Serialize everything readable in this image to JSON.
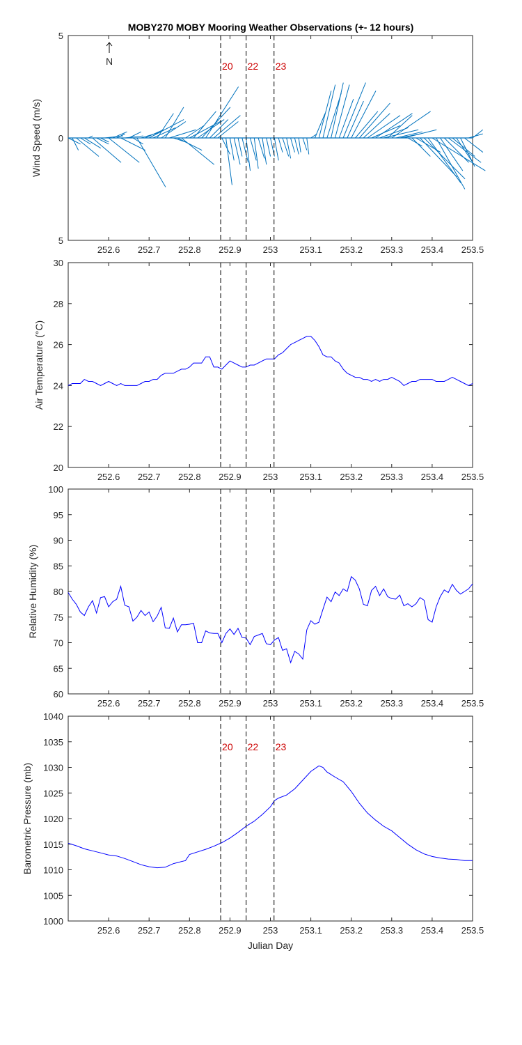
{
  "title": "MOBY270 MOBY Mooring Weather Observations (+- 12 hours)",
  "north_label": "N",
  "xlabel": "Julian Day",
  "x_tick_values": [
    252.6,
    252.7,
    252.8,
    252.9,
    253.0,
    253.1,
    253.2,
    253.3,
    253.4,
    253.5
  ],
  "x_tick_labels": [
    "252.6",
    "252.7",
    "252.8",
    "252.9",
    "253",
    "253.1",
    "253.2",
    "253.3",
    "253.4",
    "253.5"
  ],
  "markers": [
    {
      "x": 252.877,
      "label": "20"
    },
    {
      "x": 252.94,
      "label": "22"
    },
    {
      "x": 253.009,
      "label": "23"
    }
  ],
  "colors": {
    "line": "#0000ff",
    "quiver": "#0072bd",
    "marker_label": "#cc0000",
    "axis": "#262626"
  },
  "chart_data": [
    {
      "type": "quiver",
      "ylabel": "Wind Speed (m/s)",
      "xlim": [
        252.5,
        253.5
      ],
      "ylim": [
        -5,
        5
      ],
      "y_tick_values": [
        5,
        0,
        -5
      ],
      "y_tick_labels": [
        "5",
        "0",
        "5"
      ],
      "show_markers": true,
      "show_marker_labels": true,
      "series": [
        {
          "x": [
            252.5,
            252.51,
            252.52,
            252.53,
            252.54,
            252.55,
            252.56,
            252.57,
            252.58,
            252.59,
            252.6,
            252.61,
            252.62,
            252.63,
            252.64,
            252.65,
            252.66,
            252.67,
            252.68,
            252.69,
            252.7,
            252.71,
            252.72,
            252.73,
            252.74,
            252.75,
            252.76,
            252.77,
            252.78,
            252.79,
            252.8,
            252.81,
            252.82,
            252.83,
            252.84,
            252.85,
            252.86,
            252.87,
            252.88,
            252.89,
            252.9,
            252.91,
            252.92,
            252.93,
            252.94,
            252.95,
            252.96,
            252.97,
            252.98,
            252.99,
            253.0,
            253.01,
            253.02,
            253.03,
            253.04,
            253.05,
            253.06,
            253.07,
            253.08,
            253.09,
            253.1,
            253.11,
            253.12,
            253.13,
            253.14,
            253.15,
            253.16,
            253.17,
            253.18,
            253.19,
            253.2,
            253.21,
            253.22,
            253.23,
            253.24,
            253.25,
            253.26,
            253.27,
            253.28,
            253.29,
            253.3,
            253.31,
            253.32,
            253.33,
            253.34,
            253.35,
            253.36,
            253.37,
            253.38,
            253.39,
            253.4,
            253.41,
            253.42,
            253.43,
            253.44,
            253.45,
            253.46,
            253.47,
            253.48,
            253.49,
            253.5
          ],
          "u": [
            0.6,
            0.3,
            1.1,
            0.5,
            0.8,
            0.2,
            1.4,
            0.6,
            0.4,
            0.9,
            1.5,
            0.7,
            0.4,
            1.2,
            0.9,
            0.6,
            0.5,
            1.4,
            1.0,
            0.9,
            1.7,
            1.1,
            0.8,
            1.2,
            0.9,
            1.3,
            0.6,
            1.2,
            1.6,
            0.9,
            1.5,
            1.1,
            1.3,
            1.4,
            1.6,
            0.9,
            1.3,
            1.0,
            0.4,
            0.3,
            0.2,
            0.3,
            0.2,
            0.3,
            0.2,
            0.3,
            0.2,
            0.3,
            0.2,
            0.2,
            0.2,
            0.2,
            0.2,
            0.3,
            0.2,
            0.2,
            0.2,
            0.1,
            0.2,
            0.1,
            0.3,
            0.5,
            0.6,
            0.6,
            0.7,
            0.6,
            0.7,
            0.7,
            1.1,
            0.8,
            1.2,
            1.1,
            1.5,
            1.3,
            1.6,
            1.4,
            1.8,
            1.4,
            1.7,
            1.2,
            1.9,
            1.3,
            1.0,
            1.6,
            0.7,
            0.9,
            1.2,
            1.8,
            2.0,
            1.6,
            2.6,
            1.4,
            1.1,
            1.2,
            1.6,
            1.1,
            0.8,
            0.7,
            0.9,
            0.7,
            0.5
          ],
          "v": [
            -0.3,
            -0.6,
            -0.9,
            -0.3,
            -0.5,
            0.1,
            -1.2,
            -0.3,
            -0.2,
            0.1,
            -1.2,
            0.3,
            0.2,
            -0.6,
            0.1,
            0.3,
            -0.3,
            -2.4,
            0.3,
            0.4,
            0.9,
            0.5,
            1.2,
            0.8,
            1.5,
            0.4,
            -0.2,
            -0.6,
            -1.3,
            0.6,
            0.8,
            1.3,
            0.9,
            1.5,
            2.5,
            0.9,
            1.1,
            0.8,
            -0.8,
            -2.3,
            -1.1,
            -1.3,
            -0.9,
            -1.2,
            -1.6,
            -1.1,
            -1.5,
            -1.0,
            -1.3,
            -0.9,
            -0.9,
            -1.1,
            -0.7,
            -0.9,
            -1.0,
            -0.7,
            -0.8,
            -0.7,
            -0.6,
            -0.8,
            0.2,
            1.2,
            2.3,
            2.6,
            2.2,
            2.7,
            2.6,
            1.9,
            2.7,
            1.8,
            2.3,
            1.3,
            1.7,
            1.2,
            1.1,
            0.6,
            1.2,
            0.5,
            0.4,
            1.1,
            1.3,
            0.3,
            0.2,
            0.4,
            -0.4,
            -0.9,
            -0.7,
            -1.9,
            -2.0,
            -2.2,
            -1.6,
            -2.5,
            -1.6,
            -1.2,
            -1.2,
            -0.9,
            -1.2,
            -1.4,
            -0.7,
            0.2,
            0.4
          ]
        }
      ]
    },
    {
      "type": "line",
      "ylabel": "Air Temperature (°C)",
      "xlim": [
        252.5,
        253.5
      ],
      "ylim": [
        20,
        30
      ],
      "y_tick_values": [
        20,
        22,
        24,
        26,
        28,
        30
      ],
      "y_tick_labels": [
        "20",
        "22",
        "24",
        "26",
        "28",
        "30"
      ],
      "show_markers": true,
      "show_marker_labels": false,
      "series": [
        {
          "x": [
            252.5,
            252.51,
            252.52,
            252.53,
            252.54,
            252.55,
            252.56,
            252.57,
            252.58,
            252.59,
            252.6,
            252.61,
            252.62,
            252.63,
            252.64,
            252.65,
            252.66,
            252.67,
            252.68,
            252.69,
            252.7,
            252.71,
            252.72,
            252.73,
            252.74,
            252.75,
            252.76,
            252.77,
            252.78,
            252.79,
            252.8,
            252.81,
            252.82,
            252.83,
            252.84,
            252.85,
            252.86,
            252.87,
            252.88,
            252.89,
            252.9,
            252.91,
            252.92,
            252.93,
            252.94,
            252.95,
            252.96,
            252.97,
            252.98,
            252.99,
            253.0,
            253.01,
            253.02,
            253.03,
            253.04,
            253.05,
            253.06,
            253.07,
            253.08,
            253.09,
            253.1,
            253.11,
            253.12,
            253.13,
            253.14,
            253.15,
            253.16,
            253.17,
            253.18,
            253.19,
            253.2,
            253.21,
            253.22,
            253.23,
            253.24,
            253.25,
            253.26,
            253.27,
            253.28,
            253.29,
            253.3,
            253.31,
            253.32,
            253.33,
            253.34,
            253.35,
            253.36,
            253.37,
            253.38,
            253.39,
            253.4,
            253.41,
            253.42,
            253.43,
            253.44,
            253.45,
            253.46,
            253.47,
            253.48,
            253.49,
            253.5
          ],
          "y": [
            24.0,
            24.1,
            24.1,
            24.1,
            24.3,
            24.2,
            24.2,
            24.1,
            24.0,
            24.1,
            24.2,
            24.1,
            24.0,
            24.1,
            24.0,
            24.0,
            24.0,
            24.0,
            24.1,
            24.2,
            24.2,
            24.3,
            24.3,
            24.5,
            24.6,
            24.6,
            24.6,
            24.7,
            24.8,
            24.8,
            24.9,
            25.1,
            25.1,
            25.1,
            25.4,
            25.4,
            24.9,
            24.9,
            24.8,
            25.0,
            25.2,
            25.1,
            25.0,
            24.9,
            24.9,
            25.0,
            25.0,
            25.1,
            25.2,
            25.3,
            25.3,
            25.3,
            25.5,
            25.6,
            25.8,
            26.0,
            26.1,
            26.2,
            26.3,
            26.4,
            26.4,
            26.2,
            25.9,
            25.5,
            25.4,
            25.4,
            25.2,
            25.1,
            24.8,
            24.6,
            24.5,
            24.4,
            24.4,
            24.3,
            24.3,
            24.2,
            24.3,
            24.2,
            24.3,
            24.3,
            24.4,
            24.3,
            24.2,
            24.0,
            24.1,
            24.2,
            24.2,
            24.3,
            24.3,
            24.3,
            24.3,
            24.2,
            24.2,
            24.2,
            24.3,
            24.4,
            24.3,
            24.2,
            24.1,
            24.0,
            24.1
          ]
        }
      ]
    },
    {
      "type": "line",
      "ylabel": "Relative Humidity (%)",
      "xlim": [
        252.5,
        253.5
      ],
      "ylim": [
        60,
        100
      ],
      "y_tick_values": [
        60,
        65,
        70,
        75,
        80,
        85,
        90,
        95,
        100
      ],
      "y_tick_labels": [
        "60",
        "65",
        "70",
        "75",
        "80",
        "85",
        "90",
        "95",
        "100"
      ],
      "show_markers": true,
      "show_marker_labels": false,
      "series": [
        {
          "x": [
            252.5,
            252.51,
            252.52,
            252.53,
            252.54,
            252.55,
            252.56,
            252.57,
            252.58,
            252.59,
            252.6,
            252.61,
            252.62,
            252.63,
            252.64,
            252.65,
            252.66,
            252.67,
            252.68,
            252.69,
            252.7,
            252.71,
            252.72,
            252.73,
            252.74,
            252.75,
            252.76,
            252.77,
            252.78,
            252.79,
            252.8,
            252.81,
            252.82,
            252.83,
            252.84,
            252.85,
            252.86,
            252.87,
            252.88,
            252.89,
            252.9,
            252.91,
            252.92,
            252.93,
            252.94,
            252.95,
            252.96,
            252.97,
            252.98,
            252.99,
            253.0,
            253.01,
            253.02,
            253.03,
            253.04,
            253.05,
            253.06,
            253.07,
            253.08,
            253.09,
            253.1,
            253.11,
            253.12,
            253.13,
            253.14,
            253.15,
            253.16,
            253.17,
            253.18,
            253.19,
            253.2,
            253.21,
            253.22,
            253.23,
            253.24,
            253.25,
            253.26,
            253.27,
            253.28,
            253.29,
            253.3,
            253.31,
            253.32,
            253.33,
            253.34,
            253.35,
            253.36,
            253.37,
            253.38,
            253.39,
            253.4,
            253.41,
            253.42,
            253.43,
            253.44,
            253.45,
            253.46,
            253.47,
            253.48,
            253.49,
            253.5
          ],
          "y": [
            79.8,
            78.5,
            77.5,
            76.0,
            75.3,
            77.0,
            78.2,
            75.8,
            78.8,
            79.0,
            77.0,
            78.0,
            78.5,
            81.0,
            77.3,
            77.0,
            74.2,
            75.0,
            76.3,
            75.3,
            76.0,
            74.1,
            75.2,
            76.9,
            72.9,
            72.8,
            74.8,
            72.1,
            73.5,
            73.5,
            73.6,
            73.8,
            70.0,
            70.0,
            72.3,
            71.9,
            71.8,
            71.8,
            70.0,
            71.8,
            72.7,
            71.6,
            72.8,
            71.0,
            70.9,
            69.6,
            71.2,
            71.5,
            71.8,
            69.8,
            69.6,
            70.5,
            71.0,
            68.5,
            68.8,
            66.1,
            68.3,
            67.8,
            66.8,
            72.5,
            74.3,
            73.6,
            74.0,
            76.5,
            78.9,
            78.0,
            79.9,
            79.2,
            80.5,
            80.0,
            82.9,
            82.2,
            80.5,
            77.5,
            77.2,
            80.2,
            81.0,
            79.2,
            80.5,
            79.0,
            78.6,
            78.5,
            79.3,
            77.2,
            77.6,
            77.0,
            77.6,
            78.8,
            78.3,
            74.5,
            74.0,
            77.0,
            79.0,
            80.3,
            79.8,
            81.4,
            80.2,
            79.5,
            80.0,
            80.5,
            81.5
          ]
        }
      ]
    },
    {
      "type": "line",
      "ylabel": "Barometric Pressure (mb)",
      "xlim": [
        252.5,
        253.5
      ],
      "ylim": [
        1000,
        1040
      ],
      "y_tick_values": [
        1000,
        1005,
        1010,
        1015,
        1020,
        1025,
        1030,
        1035,
        1040
      ],
      "y_tick_labels": [
        "1000",
        "1005",
        "1010",
        "1015",
        "1020",
        "1025",
        "1030",
        "1035",
        "1040"
      ],
      "show_markers": true,
      "show_marker_labels": true,
      "series": [
        {
          "x": [
            252.5,
            252.52,
            252.54,
            252.56,
            252.58,
            252.6,
            252.62,
            252.64,
            252.66,
            252.68,
            252.7,
            252.72,
            252.74,
            252.76,
            252.78,
            252.79,
            252.8,
            252.82,
            252.84,
            252.86,
            252.88,
            252.9,
            252.92,
            252.94,
            252.96,
            252.98,
            253.0,
            253.01,
            253.02,
            253.04,
            253.06,
            253.08,
            253.1,
            253.12,
            253.13,
            253.14,
            253.15,
            253.16,
            253.18,
            253.2,
            253.22,
            253.24,
            253.26,
            253.28,
            253.3,
            253.32,
            253.34,
            253.36,
            253.38,
            253.4,
            253.42,
            253.44,
            253.46,
            253.48,
            253.5
          ],
          "y": [
            1015.2,
            1014.7,
            1014.1,
            1013.7,
            1013.3,
            1012.9,
            1012.7,
            1012.2,
            1011.6,
            1011.0,
            1010.6,
            1010.4,
            1010.5,
            1011.2,
            1011.6,
            1011.8,
            1013.0,
            1013.5,
            1014.0,
            1014.6,
            1015.3,
            1016.2,
            1017.3,
            1018.5,
            1019.5,
            1020.8,
            1022.3,
            1023.5,
            1024.0,
            1024.6,
            1025.8,
            1027.5,
            1029.2,
            1030.3,
            1030.0,
            1029.1,
            1028.6,
            1028.1,
            1027.2,
            1025.3,
            1023.0,
            1021.1,
            1019.7,
            1018.5,
            1017.6,
            1016.3,
            1015.0,
            1013.9,
            1013.1,
            1012.6,
            1012.3,
            1012.1,
            1012.0,
            1011.8,
            1011.8
          ]
        }
      ]
    }
  ]
}
